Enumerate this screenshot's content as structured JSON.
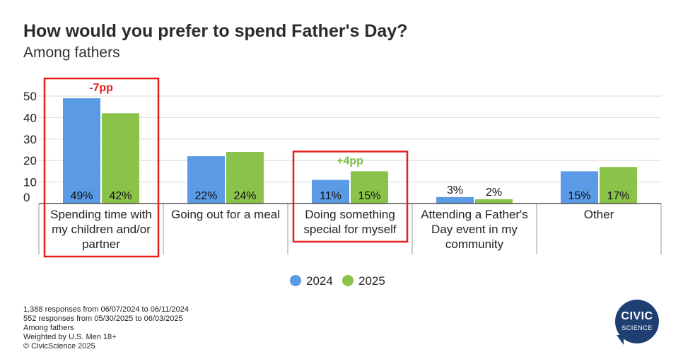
{
  "header": {
    "title": "How would you prefer to spend Father's Day?",
    "subtitle": "Among fathers"
  },
  "colors": {
    "series_2024": "#5b9be6",
    "series_2025": "#8bc34a",
    "negative_note": "#e81e1e",
    "positive_note": "#7cc142",
    "highlight_box": "#e81e1e",
    "gridline": "#d9d9d9"
  },
  "chart_data": {
    "type": "bar",
    "title": "How would you prefer to spend Father's Day?",
    "subtitle": "Among fathers",
    "categories": [
      [
        "Spending time with",
        "my children and/or",
        "partner"
      ],
      [
        "Going out for a meal"
      ],
      [
        "Doing something",
        "special for myself"
      ],
      [
        "Attending a Father's",
        "Day event in my",
        "community"
      ],
      [
        "Other"
      ]
    ],
    "series": [
      {
        "name": "2024",
        "values": [
          49,
          22,
          11,
          3,
          15
        ],
        "labels": [
          "49%",
          "22%",
          "11%",
          "3%",
          "15%"
        ]
      },
      {
        "name": "2025",
        "values": [
          42,
          24,
          15,
          2,
          17
        ],
        "labels": [
          "42%",
          "24%",
          "15%",
          "2%",
          "17%"
        ]
      }
    ],
    "ylim": [
      0,
      50
    ],
    "yticks": [
      0,
      10,
      20,
      30,
      40,
      50
    ],
    "grid": true,
    "legend": "bottom-center",
    "annotations": [
      {
        "category_index": 0,
        "text": "-7pp",
        "tone": "negative"
      },
      {
        "category_index": 2,
        "text": "+4pp",
        "tone": "positive"
      }
    ]
  },
  "footnotes": [
    "1,388 responses from 06/07/2024 to 06/11/2024",
    "552 responses from 05/30/2025 to 06/03/2025",
    "Among fathers",
    "Weighted by U.S. Men 18+",
    "© CivicScience 2025"
  ],
  "logo": {
    "line1": "CIVIC",
    "line2": "SCIENCE"
  }
}
